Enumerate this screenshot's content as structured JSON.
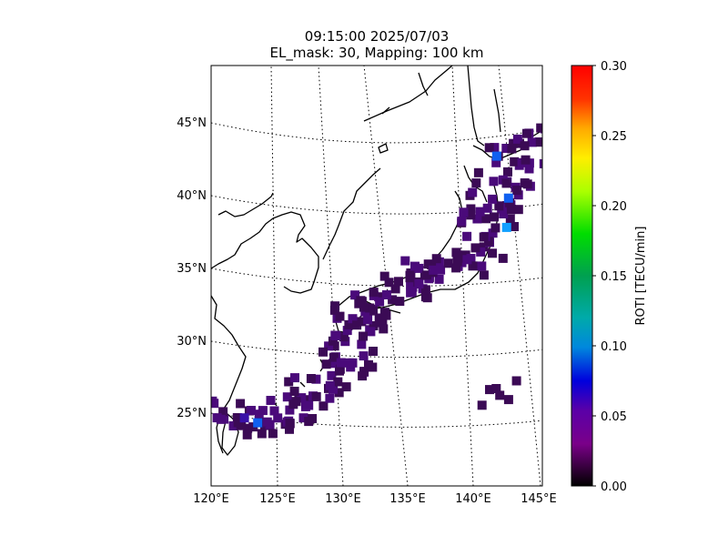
{
  "title": {
    "line1": "09:15:00 2025/07/03",
    "line2": "EL_mask: 30, Mapping: 100 km"
  },
  "map": {
    "lat_labels": [
      "45°N",
      "40°N",
      "35°N",
      "30°N",
      "25°N"
    ],
    "lon_labels": [
      "120°E",
      "125°E",
      "130°E",
      "135°E",
      "140°E",
      "145°E"
    ],
    "region": "Japan and surrounding East Asia coastline",
    "coastline_color": "#000000",
    "gridline_style": "dotted"
  },
  "colorbar": {
    "label": "ROTI [TECU/min]",
    "ticks": [
      "0.00",
      "0.05",
      "0.10",
      "0.15",
      "0.20",
      "0.25",
      "0.30"
    ],
    "vmin": 0.0,
    "vmax": 0.3,
    "colormap": "nipy_spectral"
  },
  "chart_data": {
    "type": "heatmap",
    "title": "09:15:00 2025/07/03 EL_mask: 30, Mapping: 100 km",
    "xlabel": "",
    "ylabel": "",
    "xlim": [
      120,
      145
    ],
    "ylim": [
      20,
      49
    ],
    "value_label": "ROTI [TECU/min]",
    "value_range": [
      0.0,
      0.3
    ],
    "description_points": [
      {
        "lon": 140.5,
        "lat": 42.5,
        "value": 0.07
      },
      {
        "lon": 141.5,
        "lat": 39.5,
        "value": 0.07
      },
      {
        "lon": 141.5,
        "lat": 37.5,
        "value": 0.09
      },
      {
        "lon": 123.5,
        "lat": 24.3,
        "value": 0.07
      },
      {
        "lon": 122.5,
        "lat": 24.5,
        "value": 0.05
      },
      {
        "lon": 137.5,
        "lat": 35.5,
        "value": 0.03
      },
      {
        "lon": 131.0,
        "lat": 31.5,
        "value": 0.03
      },
      {
        "lon": 128.0,
        "lat": 26.5,
        "value": 0.03
      },
      {
        "lon": 141.5,
        "lat": 26.5,
        "value": 0.03
      },
      {
        "lon": 144.0,
        "lat": 43.5,
        "value": 0.04
      }
    ]
  }
}
